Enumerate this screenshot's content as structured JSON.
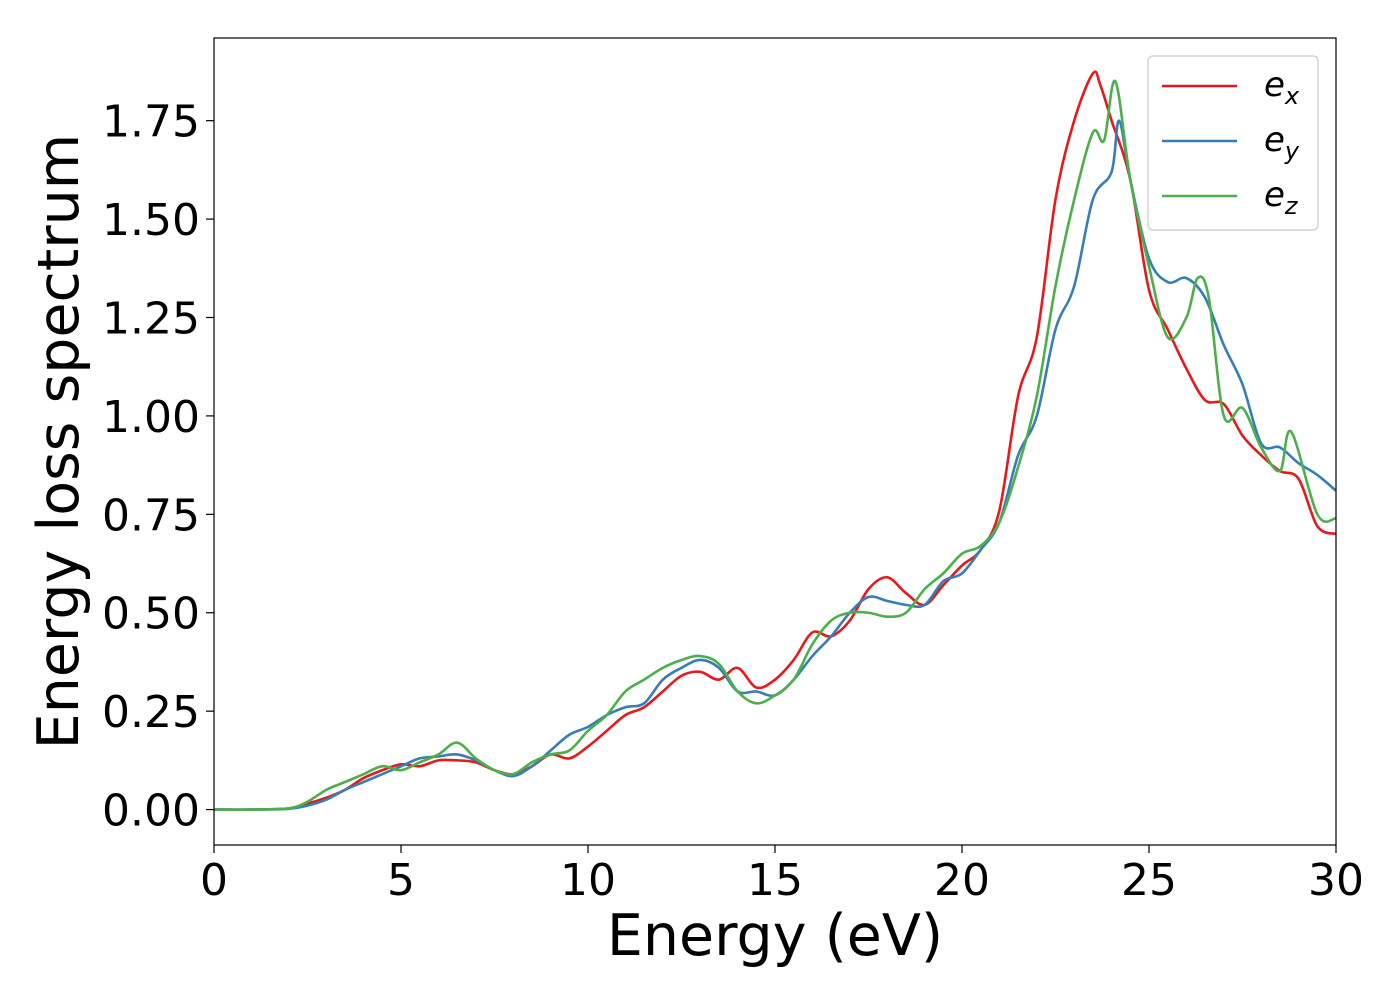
{
  "chart_data": {
    "type": "line",
    "title": "",
    "xlabel": "Energy (eV)",
    "ylabel": "Energy loss spectrum",
    "xlim": [
      0,
      30
    ],
    "ylim": [
      -0.09,
      1.96
    ],
    "xticks": [
      0,
      5,
      10,
      15,
      20,
      25,
      30
    ],
    "xtick_labels": [
      "0",
      "5",
      "10",
      "15",
      "20",
      "25",
      "30"
    ],
    "yticks": [
      0.0,
      0.25,
      0.5,
      0.75,
      1.0,
      1.25,
      1.5,
      1.75
    ],
    "ytick_labels": [
      "0.00",
      "0.25",
      "0.50",
      "0.75",
      "1.00",
      "1.25",
      "1.50",
      "1.75"
    ],
    "grid": false,
    "legend_position": "top-right",
    "series": [
      {
        "name": "e_x",
        "label_base": "e",
        "label_sub": "x",
        "color": "#e41a1c",
        "x": [
          0,
          1,
          2,
          2.5,
          3,
          3.5,
          4,
          4.5,
          5,
          5.5,
          6,
          6.5,
          7,
          7.5,
          8,
          8.5,
          9,
          9.5,
          10,
          10.5,
          11,
          11.5,
          12,
          12.5,
          13,
          13.5,
          14,
          14.5,
          15,
          15.5,
          16,
          16.5,
          17,
          17.5,
          18,
          18.5,
          19,
          19.5,
          20,
          20.5,
          21,
          21.5,
          22,
          22.5,
          23,
          23.5,
          23.7,
          24,
          24.5,
          25,
          25.5,
          26,
          26.5,
          27,
          27.5,
          28,
          28.5,
          29,
          29.5,
          30
        ],
        "y": [
          0.0,
          0.0,
          0.003,
          0.015,
          0.03,
          0.05,
          0.08,
          0.1,
          0.115,
          0.11,
          0.125,
          0.125,
          0.12,
          0.1,
          0.09,
          0.11,
          0.14,
          0.13,
          0.16,
          0.2,
          0.24,
          0.26,
          0.3,
          0.34,
          0.35,
          0.33,
          0.36,
          0.31,
          0.33,
          0.38,
          0.45,
          0.44,
          0.48,
          0.56,
          0.59,
          0.55,
          0.52,
          0.57,
          0.62,
          0.66,
          0.76,
          1.05,
          1.2,
          1.55,
          1.75,
          1.87,
          1.84,
          1.75,
          1.6,
          1.32,
          1.22,
          1.12,
          1.04,
          1.03,
          0.95,
          0.9,
          0.86,
          0.84,
          0.72,
          0.7
        ]
      },
      {
        "name": "e_y",
        "label_base": "e",
        "label_sub": "y",
        "color": "#377eb8",
        "x": [
          0,
          1,
          2,
          2.5,
          3,
          3.5,
          4,
          4.5,
          5,
          5.5,
          6,
          6.5,
          7,
          7.5,
          8,
          8.5,
          9,
          9.5,
          10,
          10.5,
          11,
          11.5,
          12,
          12.5,
          13,
          13.5,
          14,
          14.5,
          15,
          15.5,
          16,
          16.5,
          17,
          17.5,
          18,
          18.5,
          19,
          19.5,
          20,
          20.5,
          21,
          21.5,
          22,
          22.5,
          23,
          23.5,
          24,
          24.2,
          24.5,
          25,
          25.5,
          26,
          26.5,
          27,
          27.5,
          28,
          28.5,
          29,
          29.5,
          30
        ],
        "y": [
          0.0,
          0.0,
          0.002,
          0.01,
          0.025,
          0.05,
          0.07,
          0.09,
          0.11,
          0.13,
          0.135,
          0.14,
          0.125,
          0.1,
          0.085,
          0.11,
          0.15,
          0.19,
          0.21,
          0.24,
          0.26,
          0.27,
          0.33,
          0.36,
          0.38,
          0.36,
          0.3,
          0.3,
          0.29,
          0.33,
          0.39,
          0.44,
          0.5,
          0.54,
          0.53,
          0.52,
          0.52,
          0.58,
          0.6,
          0.66,
          0.73,
          0.9,
          1.0,
          1.22,
          1.33,
          1.55,
          1.62,
          1.75,
          1.6,
          1.4,
          1.34,
          1.35,
          1.3,
          1.18,
          1.08,
          0.93,
          0.92,
          0.88,
          0.85,
          0.81
        ]
      },
      {
        "name": "e_z",
        "label_base": "e",
        "label_sub": "z",
        "color": "#4daf4a",
        "x": [
          0,
          1,
          2,
          2.5,
          3,
          3.5,
          4,
          4.5,
          5,
          5.5,
          6,
          6.5,
          7,
          7.5,
          8,
          8.5,
          9,
          9.5,
          10,
          10.5,
          11,
          11.5,
          12,
          12.5,
          13,
          13.5,
          14,
          14.5,
          15,
          15.5,
          16,
          16.5,
          17,
          17.5,
          18,
          18.5,
          19,
          19.5,
          20,
          20.5,
          21,
          21.5,
          22,
          22.5,
          23,
          23.5,
          23.8,
          24.1,
          24.5,
          25,
          25.5,
          26,
          26.3,
          26.6,
          27,
          27.5,
          28,
          28.5,
          28.8,
          29.5,
          30
        ],
        "y": [
          0.0,
          0.0,
          0.003,
          0.02,
          0.05,
          0.07,
          0.09,
          0.11,
          0.1,
          0.12,
          0.14,
          0.17,
          0.13,
          0.1,
          0.09,
          0.12,
          0.14,
          0.15,
          0.2,
          0.24,
          0.3,
          0.33,
          0.36,
          0.38,
          0.39,
          0.37,
          0.3,
          0.27,
          0.29,
          0.33,
          0.42,
          0.48,
          0.5,
          0.5,
          0.49,
          0.5,
          0.56,
          0.6,
          0.65,
          0.67,
          0.73,
          0.87,
          1.05,
          1.33,
          1.55,
          1.72,
          1.7,
          1.85,
          1.6,
          1.38,
          1.2,
          1.25,
          1.35,
          1.3,
          1.0,
          1.02,
          0.92,
          0.86,
          0.96,
          0.75,
          0.74
        ]
      }
    ]
  }
}
